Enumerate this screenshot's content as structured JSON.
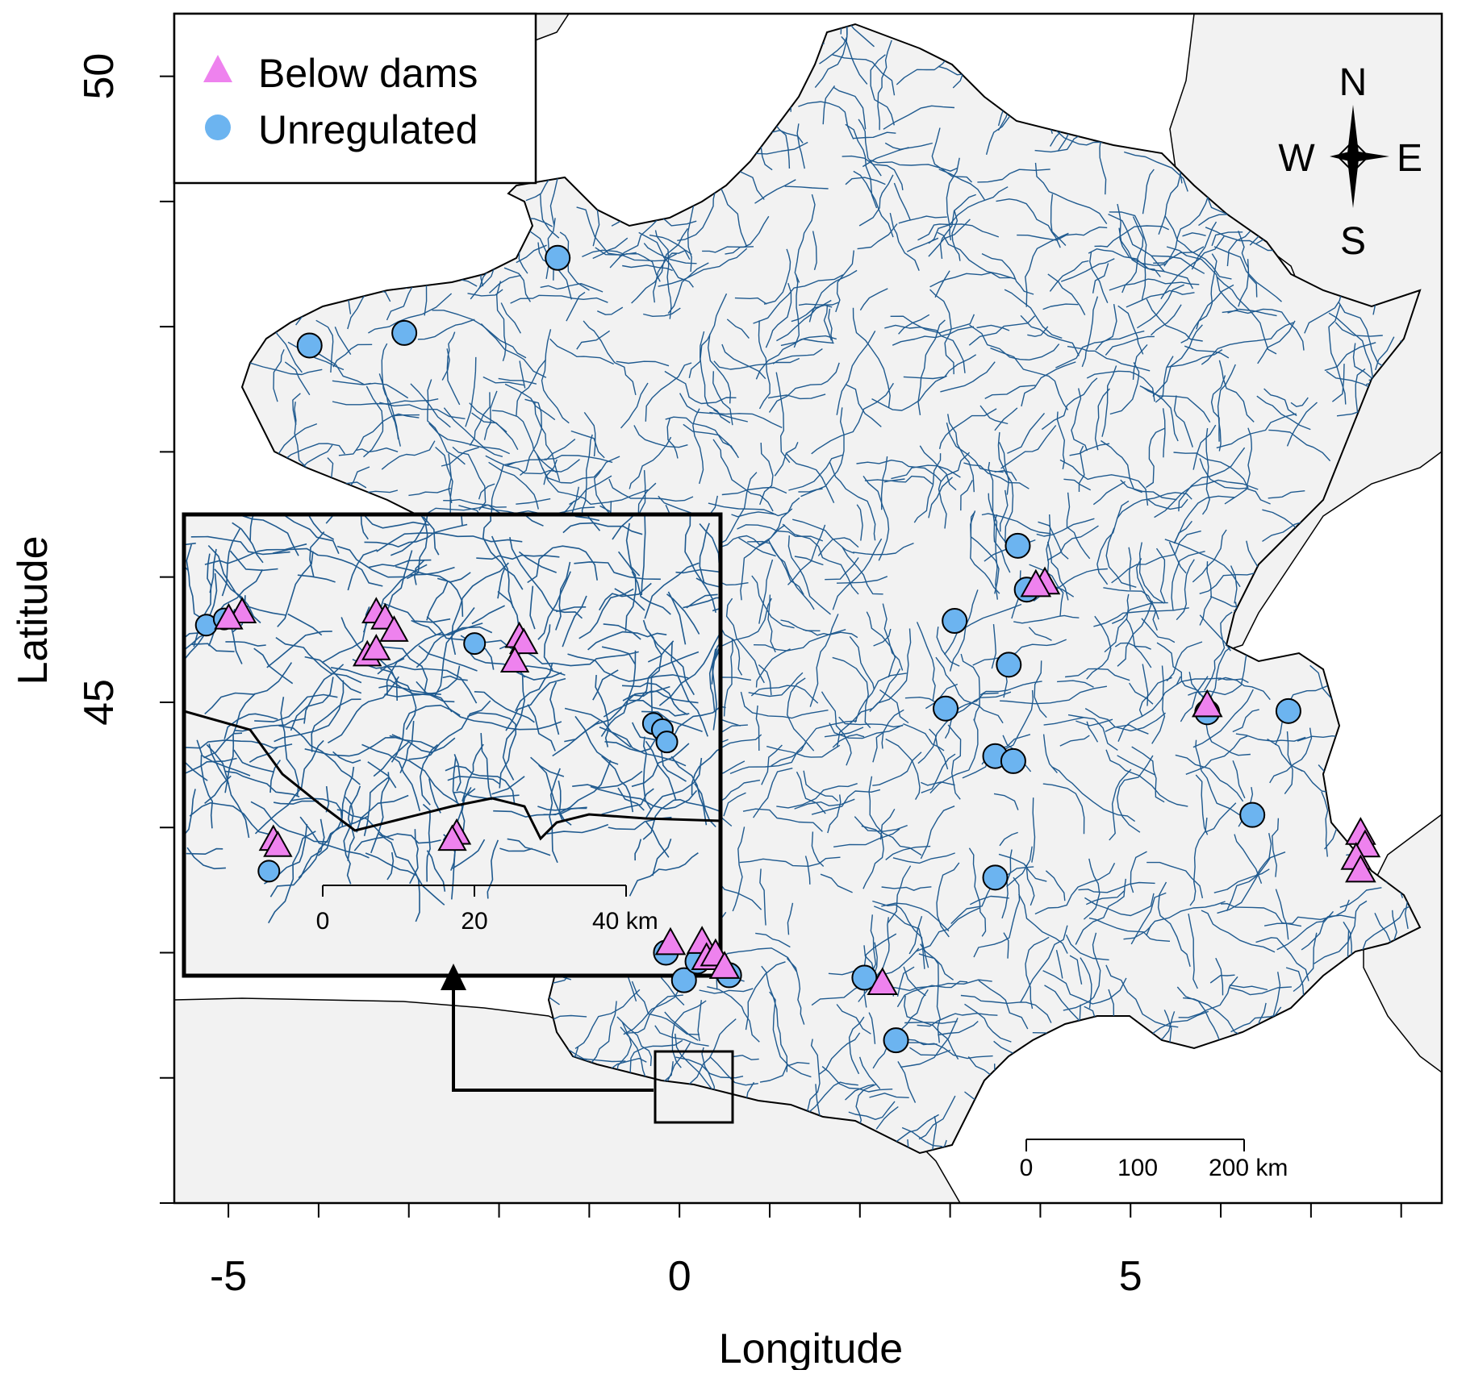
{
  "axes": {
    "xlabel": "Longitude",
    "ylabel": "Latitude",
    "xlim": [
      -5.6,
      8.45
    ],
    "ylim": [
      41.0,
      50.5
    ],
    "x_tick_values": [
      -5,
      -4,
      -3,
      -2,
      -1,
      0,
      1,
      2,
      3,
      4,
      5,
      6,
      7,
      8
    ],
    "x_tick_labels": [
      {
        "value": -5,
        "label": "-5"
      },
      {
        "value": 0,
        "label": "0"
      },
      {
        "value": 5,
        "label": "5"
      }
    ],
    "y_tick_values": [
      41,
      42,
      43,
      44,
      45,
      46,
      47,
      48,
      49,
      50,
      51
    ],
    "y_tick_labels": [
      {
        "value": 45,
        "label": "45"
      },
      {
        "value": 50,
        "label": "50"
      }
    ]
  },
  "legend": {
    "placement": "top-left",
    "items": [
      {
        "label": "Below dams",
        "marker": "triangle",
        "color": "#ee82ee"
      },
      {
        "label": "Unregulated",
        "marker": "circle",
        "color": "#6cb4f0"
      }
    ]
  },
  "compass": {
    "north": "N",
    "south": "S",
    "east": "E",
    "west": "W"
  },
  "scale_bar": {
    "ticks": [
      "0",
      "100",
      "200 km"
    ],
    "km": [
      0,
      100,
      200
    ]
  },
  "inset": {
    "scale_bar": {
      "ticks": [
        "0",
        "20",
        "40 km"
      ],
      "km": [
        0,
        20,
        40
      ]
    }
  },
  "colors": {
    "land": "#f2f2f2",
    "rivers": "#1f5a8f",
    "border": "#000000",
    "below_dams": "#ee82ee",
    "unregulated": "#6cb4f0"
  },
  "chart_data": {
    "type": "scatter",
    "xlabel": "Longitude",
    "ylabel": "Latitude",
    "xlim": [
      -5.6,
      8.45
    ],
    "ylim": [
      41.0,
      50.5
    ],
    "series": [
      {
        "name": "Below dams",
        "marker": "triangle",
        "color": "#ee82ee",
        "points": [
          {
            "lon": 4.05,
            "lat": 45.95
          },
          {
            "lon": 3.95,
            "lat": 45.93
          },
          {
            "lon": 5.85,
            "lat": 44.97
          },
          {
            "lon": 7.55,
            "lat": 43.95
          },
          {
            "lon": 7.6,
            "lat": 43.85
          },
          {
            "lon": 7.5,
            "lat": 43.75
          },
          {
            "lon": 7.55,
            "lat": 43.65
          },
          {
            "lon": 2.25,
            "lat": 42.75
          },
          {
            "lon": -0.1,
            "lat": 43.07
          },
          {
            "lon": 0.25,
            "lat": 43.08
          },
          {
            "lon": 0.3,
            "lat": 42.95
          },
          {
            "lon": 0.4,
            "lat": 42.98
          },
          {
            "lon": 0.5,
            "lat": 42.88
          }
        ]
      },
      {
        "name": "Unregulated",
        "marker": "circle",
        "color": "#6cb4f0",
        "points": [
          {
            "lon": -1.35,
            "lat": 48.55
          },
          {
            "lon": -4.1,
            "lat": 47.85
          },
          {
            "lon": -3.05,
            "lat": 47.95
          },
          {
            "lon": 3.75,
            "lat": 46.25
          },
          {
            "lon": 3.85,
            "lat": 45.9
          },
          {
            "lon": 3.05,
            "lat": 45.65
          },
          {
            "lon": 3.65,
            "lat": 45.3
          },
          {
            "lon": 2.95,
            "lat": 44.95
          },
          {
            "lon": 5.85,
            "lat": 44.92
          },
          {
            "lon": 6.75,
            "lat": 44.93
          },
          {
            "lon": 3.5,
            "lat": 44.57
          },
          {
            "lon": 3.7,
            "lat": 44.53
          },
          {
            "lon": 6.35,
            "lat": 44.1
          },
          {
            "lon": 3.5,
            "lat": 43.6
          },
          {
            "lon": 2.05,
            "lat": 42.8
          },
          {
            "lon": 2.4,
            "lat": 42.3
          },
          {
            "lon": -0.15,
            "lat": 43.0
          },
          {
            "lon": 0.05,
            "lat": 42.78
          },
          {
            "lon": 0.2,
            "lat": 42.93
          },
          {
            "lon": 0.55,
            "lat": 42.82
          }
        ]
      }
    ]
  }
}
